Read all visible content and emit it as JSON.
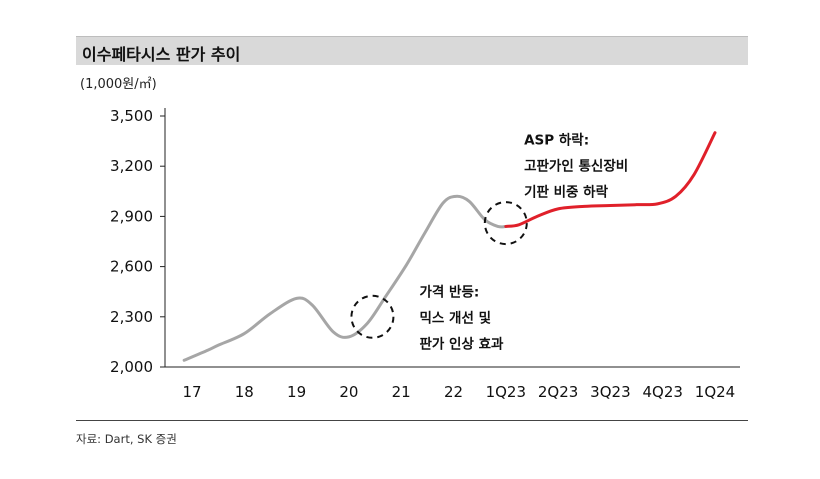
{
  "header": {
    "title": "이수페타시스 판가 추이"
  },
  "unit_label": "(1,000원/㎡)",
  "source": "자료: Dart, SK 증권",
  "chart_data": {
    "type": "line",
    "title": "이수페타시스 판가 추이",
    "ylabel": "(1,000원/㎡)",
    "xlabel": "",
    "categories": [
      "17",
      "18",
      "19",
      "20",
      "21",
      "22",
      "1Q23",
      "2Q23",
      "3Q23",
      "4Q23",
      "1Q24"
    ],
    "ylim": [
      2000,
      3500
    ],
    "yticks": [
      "2,000",
      "2,300",
      "2,600",
      "2,900",
      "3,200",
      "3,500"
    ],
    "ytick_values": [
      2000,
      2300,
      2600,
      2900,
      3200,
      3500
    ],
    "series": [
      {
        "color": "#a6a6a6",
        "x": [
          -0.15,
          0.3,
          0.5,
          1.0,
          1.5,
          2.0,
          2.3,
          2.7,
          3.0,
          3.35,
          3.7,
          4.1,
          4.45,
          4.8,
          5.05,
          5.3,
          5.6,
          5.85,
          6.0
        ],
        "values": [
          2040,
          2100,
          2130,
          2200,
          2320,
          2410,
          2370,
          2210,
          2180,
          2260,
          2420,
          2610,
          2800,
          2980,
          3020,
          2990,
          2880,
          2840,
          2840
        ]
      },
      {
        "color": "#e0202a",
        "x": [
          6.0,
          6.25,
          6.6,
          7.0,
          7.5,
          8.0,
          8.5,
          8.9,
          9.25,
          9.6,
          10.0
        ],
        "values": [
          2840,
          2850,
          2900,
          2945,
          2960,
          2965,
          2970,
          2975,
          3020,
          3150,
          3400
        ]
      }
    ],
    "annotations": [
      {
        "lines": [
          "가격 반등:",
          "믹스 개선 및",
          "판가 인상 효과"
        ],
        "x": 4.35,
        "y": 2420
      },
      {
        "lines": [
          "ASP 하락:",
          "고판가인 통신장비",
          "기판 비중 하락"
        ],
        "x": 6.35,
        "y": 3330
      }
    ],
    "highlight_circles": [
      {
        "x": 3.45,
        "y": 2300
      },
      {
        "x": 6.0,
        "y": 2860
      }
    ],
    "grid": false,
    "legend": "none"
  }
}
